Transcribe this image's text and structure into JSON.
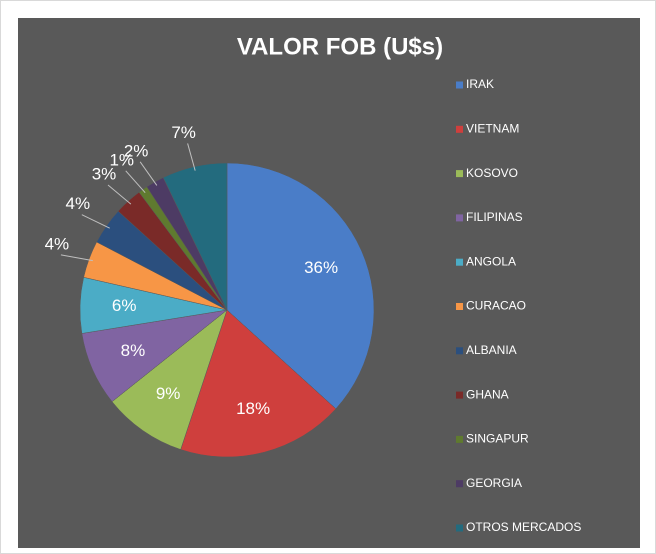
{
  "chart_data": {
    "type": "pie",
    "title": "VALOR FOB (U$s)",
    "categories": [
      "IRAK",
      "VIETNAM",
      "KOSOVO",
      "FILIPINAS",
      "ANGOLA",
      "CURACAO",
      "ALBANIA",
      "GHANA",
      "SINGAPUR",
      "GEORGIA",
      "OTROS MERCADOS"
    ],
    "values": [
      36,
      18,
      9,
      8,
      6,
      4,
      4,
      3,
      1,
      2,
      7
    ],
    "value_labels": [
      "36%",
      "18%",
      "9%",
      "8%",
      "6%",
      "4%",
      "4%",
      "3%",
      "1%",
      "2%",
      "7%"
    ],
    "colors": [
      "#4a7dc8",
      "#cf3f3d",
      "#9bbb59",
      "#8064a2",
      "#4bacc6",
      "#f79646",
      "#2b4f7e",
      "#7a2a28",
      "#5f7a2f",
      "#4d3b64",
      "#236b7e"
    ],
    "legend": "right"
  }
}
